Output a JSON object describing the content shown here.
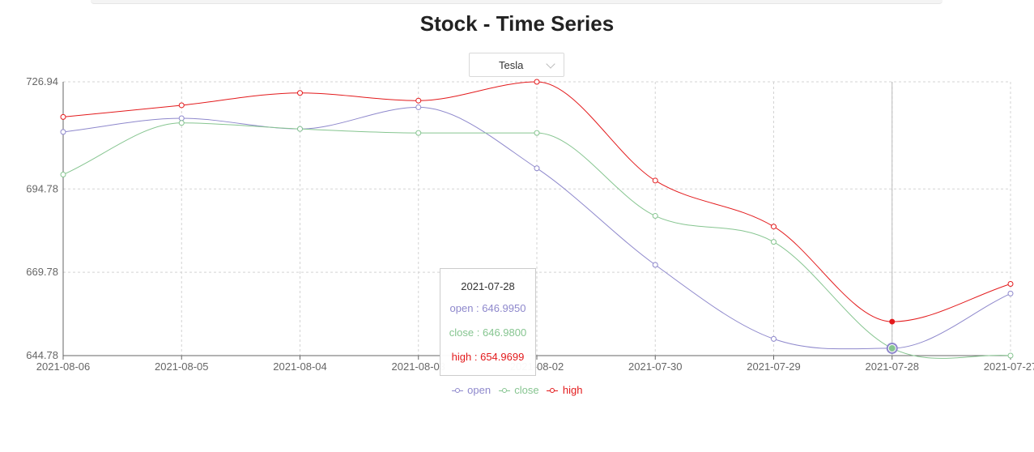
{
  "page": {
    "title": "Stock - Time Series"
  },
  "selector": {
    "value": "Tesla",
    "icon": "chevron-down-icon"
  },
  "chart_data": {
    "type": "line",
    "title": "",
    "xlabel": "",
    "ylabel": "",
    "categories": [
      "2021-08-06",
      "2021-08-05",
      "2021-08-04",
      "2021-08-03",
      "2021-08-02",
      "2021-07-30",
      "2021-07-29",
      "2021-07-28",
      "2021-07-27"
    ],
    "yticks": [
      "644.78",
      "669.78",
      "694.78",
      "726.94"
    ],
    "ylim": [
      644.78,
      726.94
    ],
    "grid": true,
    "legend_position": "bottom",
    "series": [
      {
        "name": "open",
        "color": "#8e88cc",
        "values": [
          711.9,
          716.0,
          712.8,
          719.3,
          701.0,
          672.0,
          649.8,
          646.995,
          663.4
        ]
      },
      {
        "name": "close",
        "color": "#86c590",
        "values": [
          699.1,
          714.6,
          712.8,
          711.6,
          711.6,
          686.7,
          678.9,
          646.98,
          644.78
        ]
      },
      {
        "name": "high",
        "color": "#e31a1c",
        "values": [
          716.4,
          719.9,
          723.6,
          721.3,
          726.94,
          697.3,
          683.5,
          654.9699,
          666.3
        ]
      }
    ]
  },
  "tooltip": {
    "date": "2021-07-28",
    "rows": [
      {
        "text": "open : 646.9950",
        "color": "#8e88cc"
      },
      {
        "text": "close : 646.9800",
        "color": "#86c590"
      },
      {
        "text": "high : 654.9699",
        "color": "#e31a1c"
      }
    ]
  }
}
